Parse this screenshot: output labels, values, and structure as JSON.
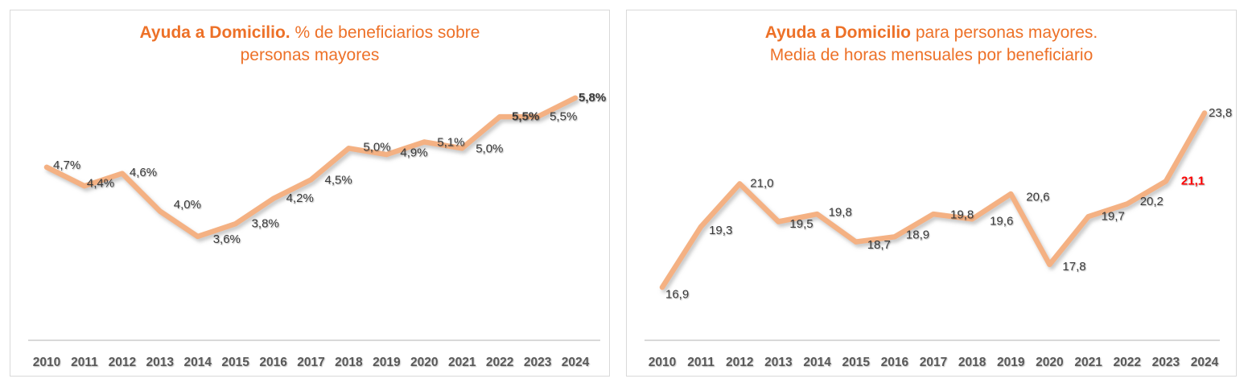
{
  "chart_data": [
    {
      "id": "ayuda-domicilio-beneficiarios-pct",
      "type": "line",
      "title": {
        "line1_bold": "Ayuda a Domicilio.",
        "line1_rest": " % de beneficiarios sobre",
        "line2": "personas mayores"
      },
      "categories": [
        "2010",
        "2011",
        "2012",
        "2013",
        "2014",
        "2015",
        "2016",
        "2017",
        "2018",
        "2019",
        "2020",
        "2021",
        "2022",
        "2023",
        "2024"
      ],
      "values": [
        4.7,
        4.4,
        4.6,
        4.0,
        3.6,
        3.8,
        4.2,
        4.5,
        5.0,
        4.9,
        5.1,
        5.0,
        5.5,
        5.5,
        5.8
      ],
      "point_labels": [
        "4,7%",
        "4,4%",
        "4,6%",
        "4,0%",
        "3,6%",
        "3,8%",
        "4,2%",
        "4,5%",
        "5,0%",
        "4,9%",
        "5,1%",
        "5,0%",
        "5,5%",
        "5,5%",
        "5,8%"
      ],
      "bold_label_indices": [
        12,
        14
      ],
      "red_label_indices": [],
      "xlabel": "",
      "ylabel": "",
      "ylim": [
        1.95,
        6.0
      ],
      "grid": false,
      "legend": "none",
      "line_color": "#F4B183",
      "label_color": "#3A3A3A",
      "axis_label_color": "#595959",
      "axis_line_color": "#D9D9D9",
      "highlight_color": "#FF0000",
      "title_color": "#ED7128"
    },
    {
      "id": "ayuda-domicilio-horas-mensuales",
      "type": "line",
      "title": {
        "line1_bold": "Ayuda a Domicilio",
        "line1_rest": " para personas mayores.",
        "line2": "Media de horas mensuales por beneficiario"
      },
      "categories": [
        "2010",
        "2011",
        "2012",
        "2013",
        "2014",
        "2015",
        "2016",
        "2017",
        "2018",
        "2019",
        "2020",
        "2021",
        "2022",
        "2023",
        "2024"
      ],
      "values": [
        16.9,
        19.3,
        21.0,
        19.5,
        19.8,
        18.7,
        18.9,
        19.8,
        19.6,
        20.6,
        17.8,
        19.7,
        20.2,
        21.1,
        23.8
      ],
      "point_labels": [
        "16,9",
        "19,3",
        "21,0",
        "19,5",
        "19,8",
        "18,7",
        "18,9",
        "19,8",
        "19,6",
        "20,6",
        "17,8",
        "19,7",
        "20,2",
        "21,1",
        "23,8"
      ],
      "bold_label_indices": [
        13
      ],
      "red_label_indices": [
        13
      ],
      "xlabel": "",
      "ylabel": "",
      "ylim": [
        14.8,
        24.9
      ],
      "grid": false,
      "legend": "none",
      "line_color": "#F4B183",
      "label_color": "#3A3A3A",
      "axis_label_color": "#595959",
      "axis_line_color": "#D9D9D9",
      "highlight_color": "#FF0000",
      "title_color": "#ED7128"
    }
  ]
}
